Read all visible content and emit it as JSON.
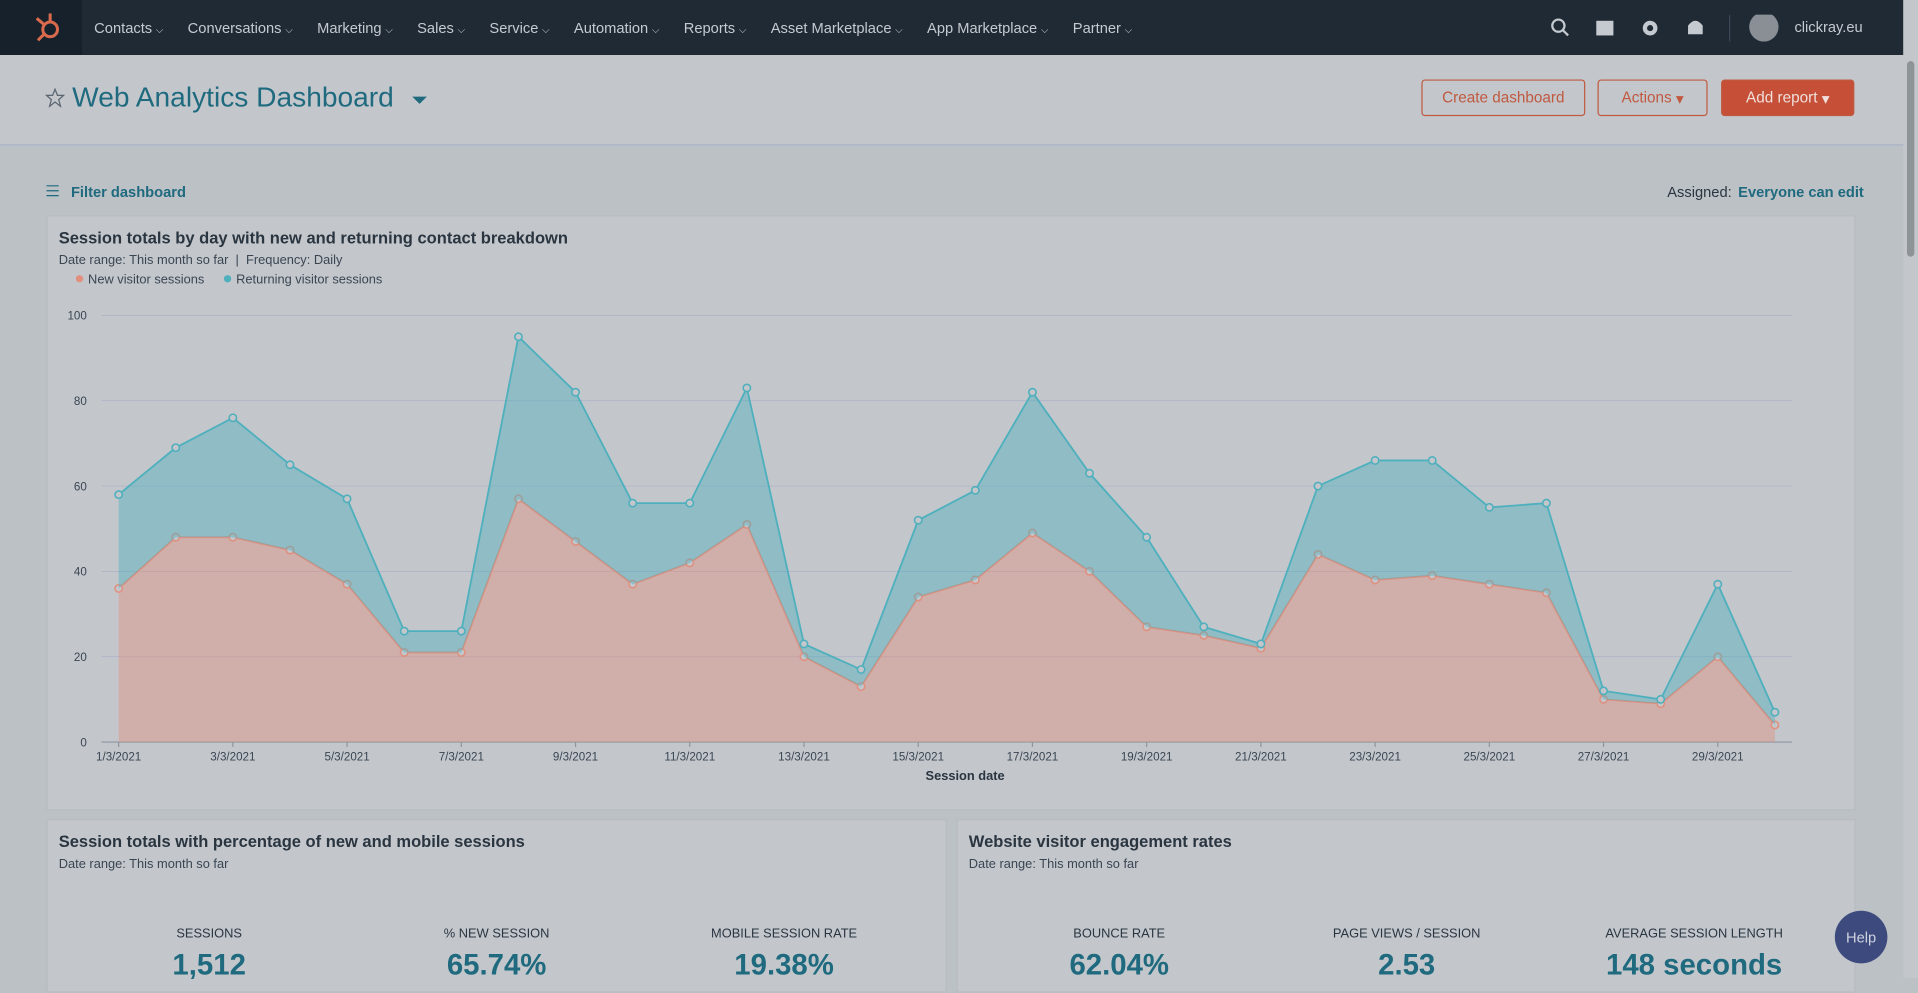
{
  "nav": {
    "items": [
      "Contacts",
      "Conversations",
      "Marketing",
      "Sales",
      "Service",
      "Automation",
      "Reports",
      "Asset Marketplace",
      "App Marketplace",
      "Partner"
    ],
    "account": "clickray.eu"
  },
  "header": {
    "title": "Web Analytics Dashboard",
    "buttons": [
      "Create dashboard",
      "Actions",
      "Add report"
    ]
  },
  "toolbar": {
    "filter": "Filter dashboard",
    "assigned_label": "Assigned:",
    "assigned_value": "Everyone can edit"
  },
  "chart_data": {
    "type": "stacked-area",
    "title": "Session totals by day with new and returning contact breakdown",
    "date_range_label": "Date range:",
    "date_range": "This month so far",
    "frequency_label": "Frequency:",
    "frequency": "Daily",
    "x_label": "Session date",
    "categories": [
      "1/3/2021",
      null,
      "3/3/2021",
      null,
      "5/3/2021",
      null,
      "7/3/2021",
      null,
      "9/3/2021",
      null,
      "11/3/2021",
      null,
      "13/3/2021",
      null,
      "15/3/2021",
      null,
      "17/3/2021",
      null,
      "19/3/2021",
      null,
      "21/3/2021",
      null,
      "23/3/2021",
      null,
      "25/3/2021",
      null,
      "27/3/2021",
      null,
      "29/3/2021",
      null
    ],
    "series": [
      {
        "name": "New visitor sessions",
        "color": "#e0907f",
        "values": [
          36,
          48,
          48,
          45,
          37,
          21,
          21,
          57,
          47,
          37,
          42,
          51,
          20,
          13,
          34,
          38,
          49,
          40,
          27,
          25,
          22,
          44,
          38,
          39,
          37,
          35,
          10,
          9,
          20,
          4
        ]
      },
      {
        "name": "Returning visitor sessions",
        "color": "#4fb0bd",
        "values": [
          22,
          21,
          28,
          20,
          20,
          5,
          5,
          38,
          35,
          19,
          14,
          32,
          3,
          4,
          18,
          21,
          33,
          23,
          21,
          2,
          1,
          16,
          28,
          27,
          18,
          21,
          2,
          1,
          17,
          3
        ]
      }
    ],
    "ylim": [
      0,
      100
    ],
    "yticks": [
      0,
      20,
      40,
      60,
      80,
      100
    ],
    "grid": true
  },
  "cards": [
    {
      "title": "Session totals with percentage of new and mobile sessions",
      "date_range_label": "Date range:",
      "date_range": "This month so far",
      "kpis": [
        {
          "label": "SESSIONS",
          "value": "1,512"
        },
        {
          "label": "% NEW SESSION",
          "value": "65.74%"
        },
        {
          "label": "MOBILE SESSION RATE",
          "value": "19.38%"
        }
      ]
    },
    {
      "title": "Website visitor engagement rates",
      "date_range_label": "Date range:",
      "date_range": "This month so far",
      "kpis": [
        {
          "label": "BOUNCE RATE",
          "value": "62.04%"
        },
        {
          "label": "PAGE VIEWS / SESSION",
          "value": "2.53"
        },
        {
          "label": "AVERAGE SESSION LENGTH",
          "value": "148 seconds"
        }
      ]
    }
  ],
  "help": "Help"
}
